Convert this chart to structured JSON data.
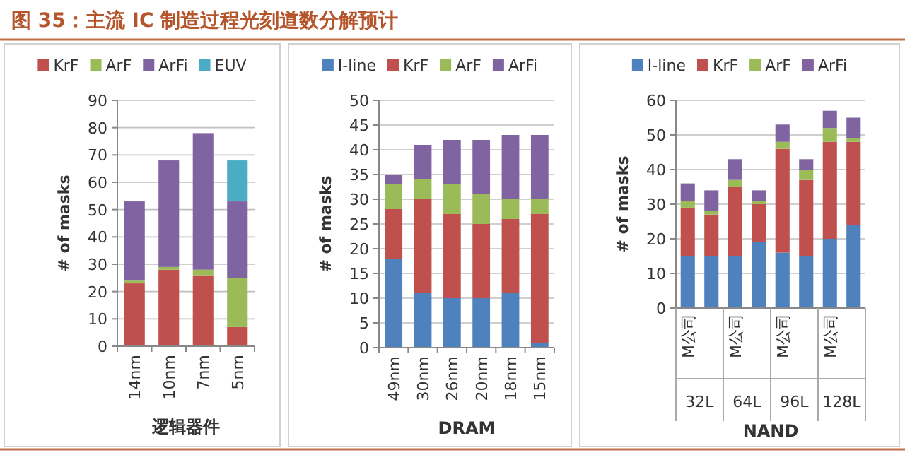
{
  "chart_data": [
    {
      "type": "bar",
      "title": "图 35：主流 IC 制造过程光刻道数分解预计",
      "stacked": true,
      "legend": "top",
      "grid": "y",
      "xlabel": "逻辑器件",
      "ylabel": "# of masks",
      "categories": [
        "14nm",
        "10nm",
        "7nm",
        "5nm"
      ],
      "ylim": [
        0,
        90
      ],
      "yticks": [
        0,
        10,
        20,
        30,
        40,
        50,
        60,
        70,
        80,
        90
      ],
      "series": [
        {
          "name": "KrF",
          "color": "#c0504d",
          "values": [
            23,
            28,
            26,
            7
          ]
        },
        {
          "name": "ArF",
          "color": "#9bbb59",
          "values": [
            1,
            1,
            2,
            18
          ]
        },
        {
          "name": "ArFi",
          "color": "#8064a2",
          "values": [
            29,
            39,
            50,
            28
          ]
        },
        {
          "name": "EUV",
          "color": "#4bacc6",
          "values": [
            null,
            null,
            null,
            15
          ]
        }
      ]
    },
    {
      "type": "bar",
      "stacked": true,
      "legend": "top",
      "grid": "y",
      "xlabel": "DRAM",
      "ylabel": "# of masks",
      "categories": [
        "49nm",
        "30nm",
        "26nm",
        "20nm",
        "18nm",
        "15nm"
      ],
      "ylim": [
        0,
        50
      ],
      "yticks": [
        0,
        5,
        10,
        15,
        20,
        25,
        30,
        35,
        40,
        45,
        50
      ],
      "series": [
        {
          "name": "I-line",
          "color": "#4f81bd",
          "values": [
            18,
            11,
            10,
            10,
            11,
            1
          ]
        },
        {
          "name": "KrF",
          "color": "#c0504d",
          "values": [
            10,
            19,
            17,
            15,
            15,
            26
          ]
        },
        {
          "name": "ArF",
          "color": "#9bbb59",
          "values": [
            5,
            4,
            6,
            6,
            4,
            3
          ]
        },
        {
          "name": "ArFi",
          "color": "#8064a2",
          "values": [
            2,
            7,
            9,
            11,
            13,
            13
          ]
        }
      ]
    },
    {
      "type": "bar",
      "stacked": true,
      "legend": "top",
      "grid": "y",
      "xlabel": "NAND",
      "ylabel": "# of masks",
      "categories": [
        "M公司",
        null,
        "M公司",
        null,
        "M公司",
        null,
        "M公司",
        null
      ],
      "annotations": [
        "32L",
        "64L",
        "96L",
        "128L"
      ],
      "ylim": [
        0,
        60
      ],
      "yticks": [
        0,
        10,
        20,
        30,
        40,
        50,
        60
      ],
      "series": [
        {
          "name": "I-line",
          "color": "#4f81bd",
          "values": [
            15,
            15,
            15,
            19,
            16,
            15,
            20,
            24
          ]
        },
        {
          "name": "KrF",
          "color": "#c0504d",
          "values": [
            14,
            12,
            20,
            11,
            30,
            22,
            28,
            24
          ]
        },
        {
          "name": "ArF",
          "color": "#9bbb59",
          "values": [
            2,
            1,
            2,
            1,
            2,
            3,
            4,
            1
          ]
        },
        {
          "name": "ArFi",
          "color": "#8064a2",
          "values": [
            5,
            6,
            6,
            3,
            5,
            3,
            5,
            6
          ]
        }
      ]
    }
  ]
}
